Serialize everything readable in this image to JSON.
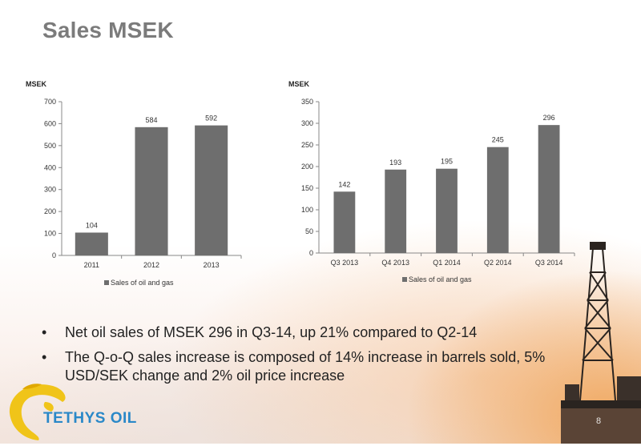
{
  "title": "Sales MSEK",
  "chart_data": [
    {
      "type": "bar",
      "ylabel": "MSEK",
      "categories": [
        "2011",
        "2012",
        "2013"
      ],
      "values": [
        104,
        584,
        592
      ],
      "ylim": [
        0,
        700
      ],
      "yticks": [
        0,
        100,
        200,
        300,
        400,
        500,
        600,
        700
      ],
      "legend": "Sales of oil and gas",
      "legend_position": "bottom",
      "grid": false,
      "bar_color": "#6e6e6e"
    },
    {
      "type": "bar",
      "ylabel": "MSEK",
      "categories": [
        "Q3 2013",
        "Q4 2013",
        "Q1 2014",
        "Q2 2014",
        "Q3 2014"
      ],
      "values": [
        142,
        193,
        195,
        245,
        296
      ],
      "ylim": [
        0,
        350
      ],
      "yticks": [
        0,
        50,
        100,
        150,
        200,
        250,
        300,
        350
      ],
      "legend": "Sales of oil and gas",
      "legend_position": "bottom",
      "grid": false,
      "bar_color": "#6e6e6e"
    }
  ],
  "bullets": [
    "Net oil sales of MSEK 296 in Q3-14, up 21% compared to Q2-14",
    "The Q-o-Q sales increase is composed of 14% increase in barrels sold, 5% USD/SEK change and 2% oil price increase"
  ],
  "bullet_symbol": "•",
  "logo": {
    "text": "TETHYS OIL",
    "color": "#2a88c8",
    "globe_color": "#f0c419"
  },
  "page_number": "8"
}
